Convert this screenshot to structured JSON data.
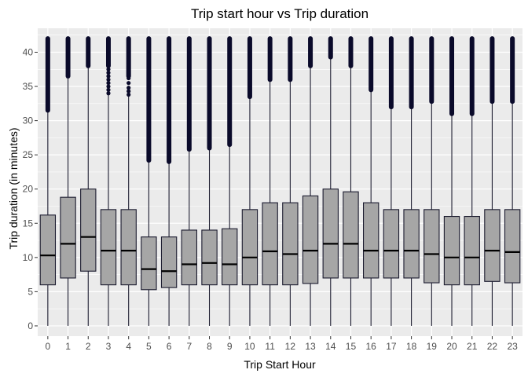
{
  "chart_data": {
    "type": "boxplot",
    "title": "Trip start hour vs Trip duration",
    "xlabel": "Trip Start Hour",
    "ylabel": "Trip duration (in minutes)",
    "ylim": [
      -1.5,
      43.5
    ],
    "y_ticks": [
      0,
      5,
      10,
      15,
      20,
      25,
      30,
      35,
      40
    ],
    "categories": [
      "0",
      "1",
      "2",
      "3",
      "4",
      "5",
      "6",
      "7",
      "8",
      "9",
      "10",
      "11",
      "12",
      "13",
      "14",
      "15",
      "16",
      "17",
      "18",
      "19",
      "20",
      "21",
      "22",
      "23"
    ],
    "boxes": [
      {
        "min": 0,
        "q1": 6.0,
        "median": 10.3,
        "q3": 16.2,
        "whisker_high": 31.5,
        "outlier_low": 31.5,
        "outlier_high": 42
      },
      {
        "min": 0,
        "q1": 7.0,
        "median": 12.0,
        "q3": 18.8,
        "whisker_high": 36.5,
        "outlier_low": 36.5,
        "outlier_high": 42
      },
      {
        "min": 0,
        "q1": 8.0,
        "median": 13.0,
        "q3": 20.0,
        "whisker_high": 38.0,
        "outlier_low": 38.0,
        "outlier_high": 42
      },
      {
        "min": 0,
        "q1": 6.0,
        "median": 11.0,
        "q3": 17.0,
        "whisker_high": 33.8,
        "outlier_low": 38.0,
        "outlier_high": 42
      },
      {
        "min": 0,
        "q1": 6.0,
        "median": 11.0,
        "q3": 17.0,
        "whisker_high": 33.8,
        "outlier_low": 36.5,
        "outlier_high": 42
      },
      {
        "min": 0,
        "q1": 5.3,
        "median": 8.3,
        "q3": 13.0,
        "whisker_high": 24.2,
        "outlier_low": 24.2,
        "outlier_high": 42
      },
      {
        "min": 0,
        "q1": 5.6,
        "median": 8.0,
        "q3": 13.0,
        "whisker_high": 24.0,
        "outlier_low": 24.0,
        "outlier_high": 42
      },
      {
        "min": 0,
        "q1": 6.0,
        "median": 9.0,
        "q3": 14.0,
        "whisker_high": 25.8,
        "outlier_low": 25.8,
        "outlier_high": 42
      },
      {
        "min": 0,
        "q1": 6.0,
        "median": 9.2,
        "q3": 14.0,
        "whisker_high": 26.0,
        "outlier_low": 26.0,
        "outlier_high": 42
      },
      {
        "min": 0,
        "q1": 6.0,
        "median": 9.0,
        "q3": 14.2,
        "whisker_high": 26.5,
        "outlier_low": 26.5,
        "outlier_high": 42
      },
      {
        "min": 0,
        "q1": 6.0,
        "median": 10.0,
        "q3": 17.0,
        "whisker_high": 33.5,
        "outlier_low": 33.5,
        "outlier_high": 42
      },
      {
        "min": 0,
        "q1": 6.0,
        "median": 10.9,
        "q3": 18.0,
        "whisker_high": 36.0,
        "outlier_low": 36.0,
        "outlier_high": 42
      },
      {
        "min": 0,
        "q1": 6.0,
        "median": 10.5,
        "q3": 18.0,
        "whisker_high": 36.0,
        "outlier_low": 36.0,
        "outlier_high": 42
      },
      {
        "min": 0,
        "q1": 6.2,
        "median": 11.0,
        "q3": 19.0,
        "whisker_high": 38.0,
        "outlier_low": 38.0,
        "outlier_high": 42
      },
      {
        "min": 0,
        "q1": 7.0,
        "median": 12.0,
        "q3": 20.0,
        "whisker_high": 39.3,
        "outlier_low": 39.3,
        "outlier_high": 42
      },
      {
        "min": 0,
        "q1": 7.0,
        "median": 12.0,
        "q3": 19.6,
        "whisker_high": 38.0,
        "outlier_low": 38.0,
        "outlier_high": 42
      },
      {
        "min": 0,
        "q1": 7.0,
        "median": 11.0,
        "q3": 18.0,
        "whisker_high": 34.5,
        "outlier_low": 34.5,
        "outlier_high": 42
      },
      {
        "min": 0,
        "q1": 7.0,
        "median": 11.0,
        "q3": 17.0,
        "whisker_high": 32.0,
        "outlier_low": 32.0,
        "outlier_high": 42
      },
      {
        "min": 0,
        "q1": 7.0,
        "median": 11.0,
        "q3": 17.0,
        "whisker_high": 32.0,
        "outlier_low": 32.0,
        "outlier_high": 42
      },
      {
        "min": 0,
        "q1": 6.3,
        "median": 10.5,
        "q3": 17.0,
        "whisker_high": 32.8,
        "outlier_low": 32.8,
        "outlier_high": 42
      },
      {
        "min": 0,
        "q1": 6.0,
        "median": 10.0,
        "q3": 16.0,
        "whisker_high": 31.0,
        "outlier_low": 31.0,
        "outlier_high": 42
      },
      {
        "min": 0,
        "q1": 6.0,
        "median": 10.0,
        "q3": 16.0,
        "whisker_high": 31.0,
        "outlier_low": 31.0,
        "outlier_high": 42
      },
      {
        "min": 0,
        "q1": 6.5,
        "median": 11.0,
        "q3": 17.0,
        "whisker_high": 32.8,
        "outlier_low": 32.8,
        "outlier_high": 42
      },
      {
        "min": 0,
        "q1": 6.3,
        "median": 10.8,
        "q3": 17.0,
        "whisker_high": 32.8,
        "outlier_low": 32.8,
        "outlier_high": 42
      }
    ],
    "sparse_outliers": {
      "3": [
        34,
        34.5,
        35,
        35.5,
        36,
        36.5,
        37,
        37.5
      ],
      "4": [
        33.8,
        34.3,
        34.8,
        35.5,
        36.2,
        37,
        37.8,
        38.5,
        39.2,
        40,
        40.8,
        41.5
      ],
      "5": [
        25,
        26,
        27,
        28,
        29,
        30,
        31,
        32,
        33,
        34,
        35,
        36,
        37,
        38,
        39,
        40,
        41
      ]
    },
    "grid": true,
    "legend": "none",
    "colors": {
      "panel": "#ebebeb",
      "grid": "#ffffff",
      "box_fill": "#a6a6a6",
      "box_line": "#1a1a2e",
      "median": "#000000",
      "outlier": "#0a0a2a"
    }
  }
}
